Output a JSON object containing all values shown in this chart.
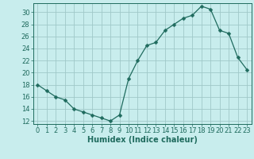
{
  "x": [
    0,
    1,
    2,
    3,
    4,
    5,
    6,
    7,
    8,
    9,
    10,
    11,
    12,
    13,
    14,
    15,
    16,
    17,
    18,
    19,
    20,
    21,
    22,
    23
  ],
  "y": [
    18,
    17,
    16,
    15.5,
    14,
    13.5,
    13,
    12.5,
    12,
    13,
    19,
    22,
    24.5,
    25,
    27,
    28,
    29,
    29.5,
    31,
    30.5,
    27,
    26.5,
    22.5,
    20.5
  ],
  "line_color": "#1f6b5e",
  "marker": "D",
  "marker_size": 2.5,
  "bg_color": "#c8eded",
  "grid_color": "#a0c8c8",
  "xlabel": "Humidex (Indice chaleur)",
  "xlim": [
    -0.5,
    23.5
  ],
  "ylim": [
    11.5,
    31.5
  ],
  "yticks": [
    12,
    14,
    16,
    18,
    20,
    22,
    24,
    26,
    28,
    30
  ],
  "xticks": [
    0,
    1,
    2,
    3,
    4,
    5,
    6,
    7,
    8,
    9,
    10,
    11,
    12,
    13,
    14,
    15,
    16,
    17,
    18,
    19,
    20,
    21,
    22,
    23
  ],
  "tick_fontsize": 6,
  "xlabel_fontsize": 7
}
